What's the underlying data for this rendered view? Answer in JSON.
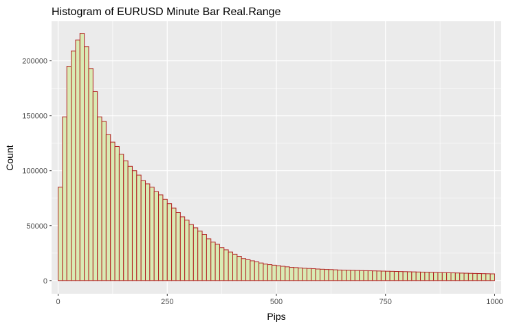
{
  "chart_data": {
    "type": "bar",
    "title": "Histogram of EURUSD Minute Bar Real.Range",
    "xlabel": "Pips",
    "ylabel": "Count",
    "xlim": [
      -15,
      1015
    ],
    "ylim": [
      -12000,
      236000
    ],
    "x_ticks": [
      0,
      250,
      500,
      750,
      1000
    ],
    "x_tick_labels": [
      "0",
      "250",
      "500",
      "750",
      "1000"
    ],
    "y_ticks": [
      0,
      50000,
      100000,
      150000,
      200000
    ],
    "y_tick_labels": [
      "0",
      "50000",
      "100000",
      "150000",
      "200000"
    ],
    "grid": true,
    "legend": "none",
    "bin_start": 0,
    "bin_width": 10,
    "values": [
      85000,
      149000,
      195000,
      209000,
      219000,
      225000,
      213000,
      193000,
      172000,
      149000,
      145000,
      133000,
      126000,
      122000,
      115000,
      109000,
      104000,
      100000,
      96000,
      91000,
      88000,
      85000,
      81000,
      78000,
      74000,
      70000,
      66000,
      62000,
      58000,
      55000,
      51000,
      48000,
      45000,
      42000,
      38000,
      35000,
      33000,
      30000,
      28000,
      26000,
      24000,
      22000,
      20000,
      19000,
      18000,
      17000,
      16000,
      15000,
      14500,
      14000,
      13500,
      13000,
      12500,
      12000,
      11800,
      11500,
      11200,
      11000,
      10800,
      10500,
      10300,
      10100,
      10000,
      9800,
      9600,
      9500,
      9400,
      9300,
      9200,
      9100,
      9000,
      8900,
      8800,
      8700,
      8600,
      8500,
      8400,
      8300,
      8200,
      8100,
      8000,
      7900,
      7800,
      7700,
      7600,
      7500,
      7400,
      7300,
      7200,
      7100,
      7000,
      6900,
      6800,
      6700,
      6600,
      6500,
      6400,
      6300,
      6200,
      6100
    ],
    "colors": {
      "panel": "#EBEBEB",
      "grid_major": "#FFFFFF",
      "bar_fill": "#D9EBB4",
      "bar_stroke": "#B22222",
      "tick_label": "#4D4D4D",
      "tick": "#333333"
    }
  }
}
